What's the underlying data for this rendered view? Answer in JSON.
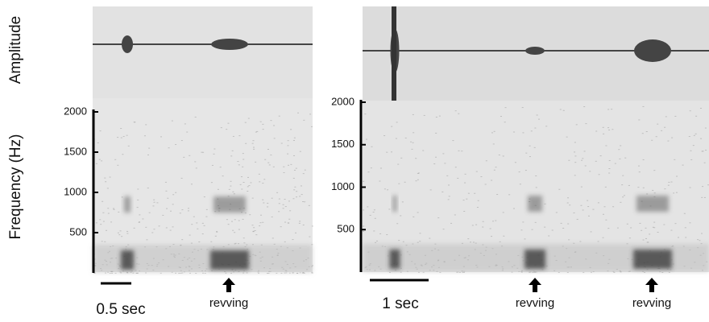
{
  "chart_data": [
    {
      "type": "spectrogram",
      "ylabel": "Frequency (Hz)",
      "waveform_label": "Amplitude",
      "ylim": [
        0,
        2000
      ],
      "yticks": [
        500,
        1000,
        1500,
        2000
      ],
      "scale_bar": "0.5 sec",
      "annotations": [
        "revving"
      ]
    },
    {
      "type": "spectrogram",
      "ylim": [
        0,
        2000
      ],
      "yticks": [
        500,
        1000,
        1500,
        2000
      ],
      "scale_bar": "1 sec",
      "annotations": [
        "revving",
        "revving"
      ]
    }
  ]
}
